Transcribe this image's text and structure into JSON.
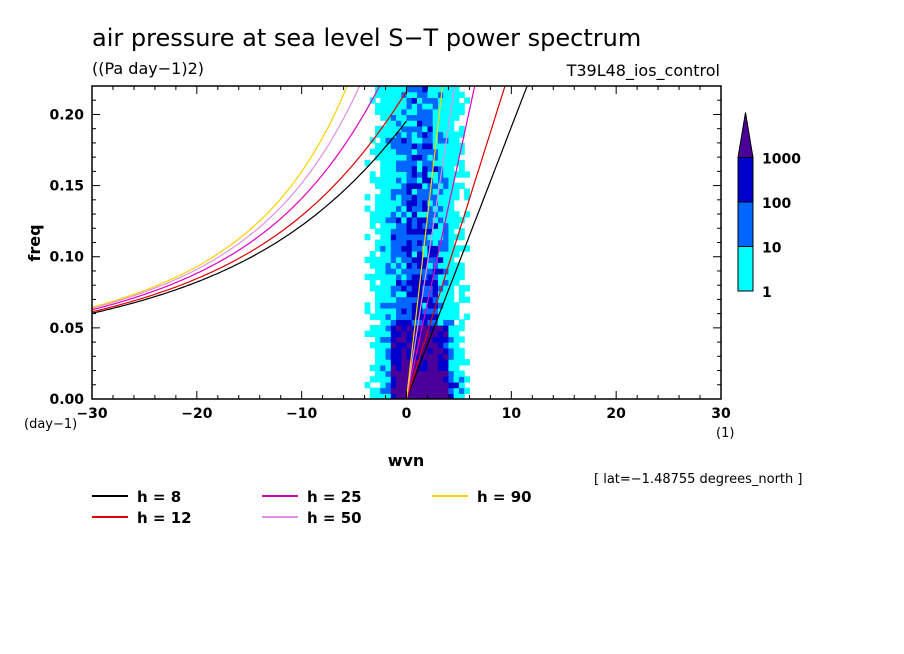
{
  "chart_data": {
    "type": "heatmap",
    "title": "air pressure at sea level S−T power spectrum",
    "units": "((Pa day−1)2)",
    "run_label": "T39L48_ios_control",
    "xlabel": "wvn",
    "ylabel": "freq",
    "x_unit": "(1)",
    "y_unit": "(day−1)",
    "xlim": [
      -30,
      30
    ],
    "ylim": [
      0,
      0.22
    ],
    "x_ticks": [
      -30,
      -20,
      -10,
      0,
      10,
      20,
      30
    ],
    "y_ticks": [
      0.0,
      0.05,
      0.1,
      0.15,
      0.2
    ],
    "x_tick_labels": [
      "−30",
      "−20",
      "−10",
      "0",
      "10",
      "20",
      "30"
    ],
    "y_tick_labels": [
      "0.00",
      "0.05",
      "0.10",
      "0.15",
      "0.20"
    ],
    "colorbar": {
      "labels": [
        "1",
        "10",
        "100",
        "1000"
      ],
      "levels": [
        1,
        10,
        100,
        1000
      ],
      "colors": [
        "#00ffff",
        "#0066ff",
        "#0000cc",
        "#4b0099"
      ]
    },
    "annotation": "[ lat=−1.48755 degrees_north ]",
    "dispersion_curves": [
      {
        "label": "h =  8",
        "h": 8,
        "color": "#000000"
      },
      {
        "label": "h = 12",
        "h": 12,
        "color": "#e00000"
      },
      {
        "label": "h = 25",
        "h": 25,
        "color": "#e000c0"
      },
      {
        "label": "h = 50",
        "h": 50,
        "color": "#e090e0"
      },
      {
        "label": "h = 90",
        "h": 90,
        "color": "#ffd000"
      }
    ]
  }
}
